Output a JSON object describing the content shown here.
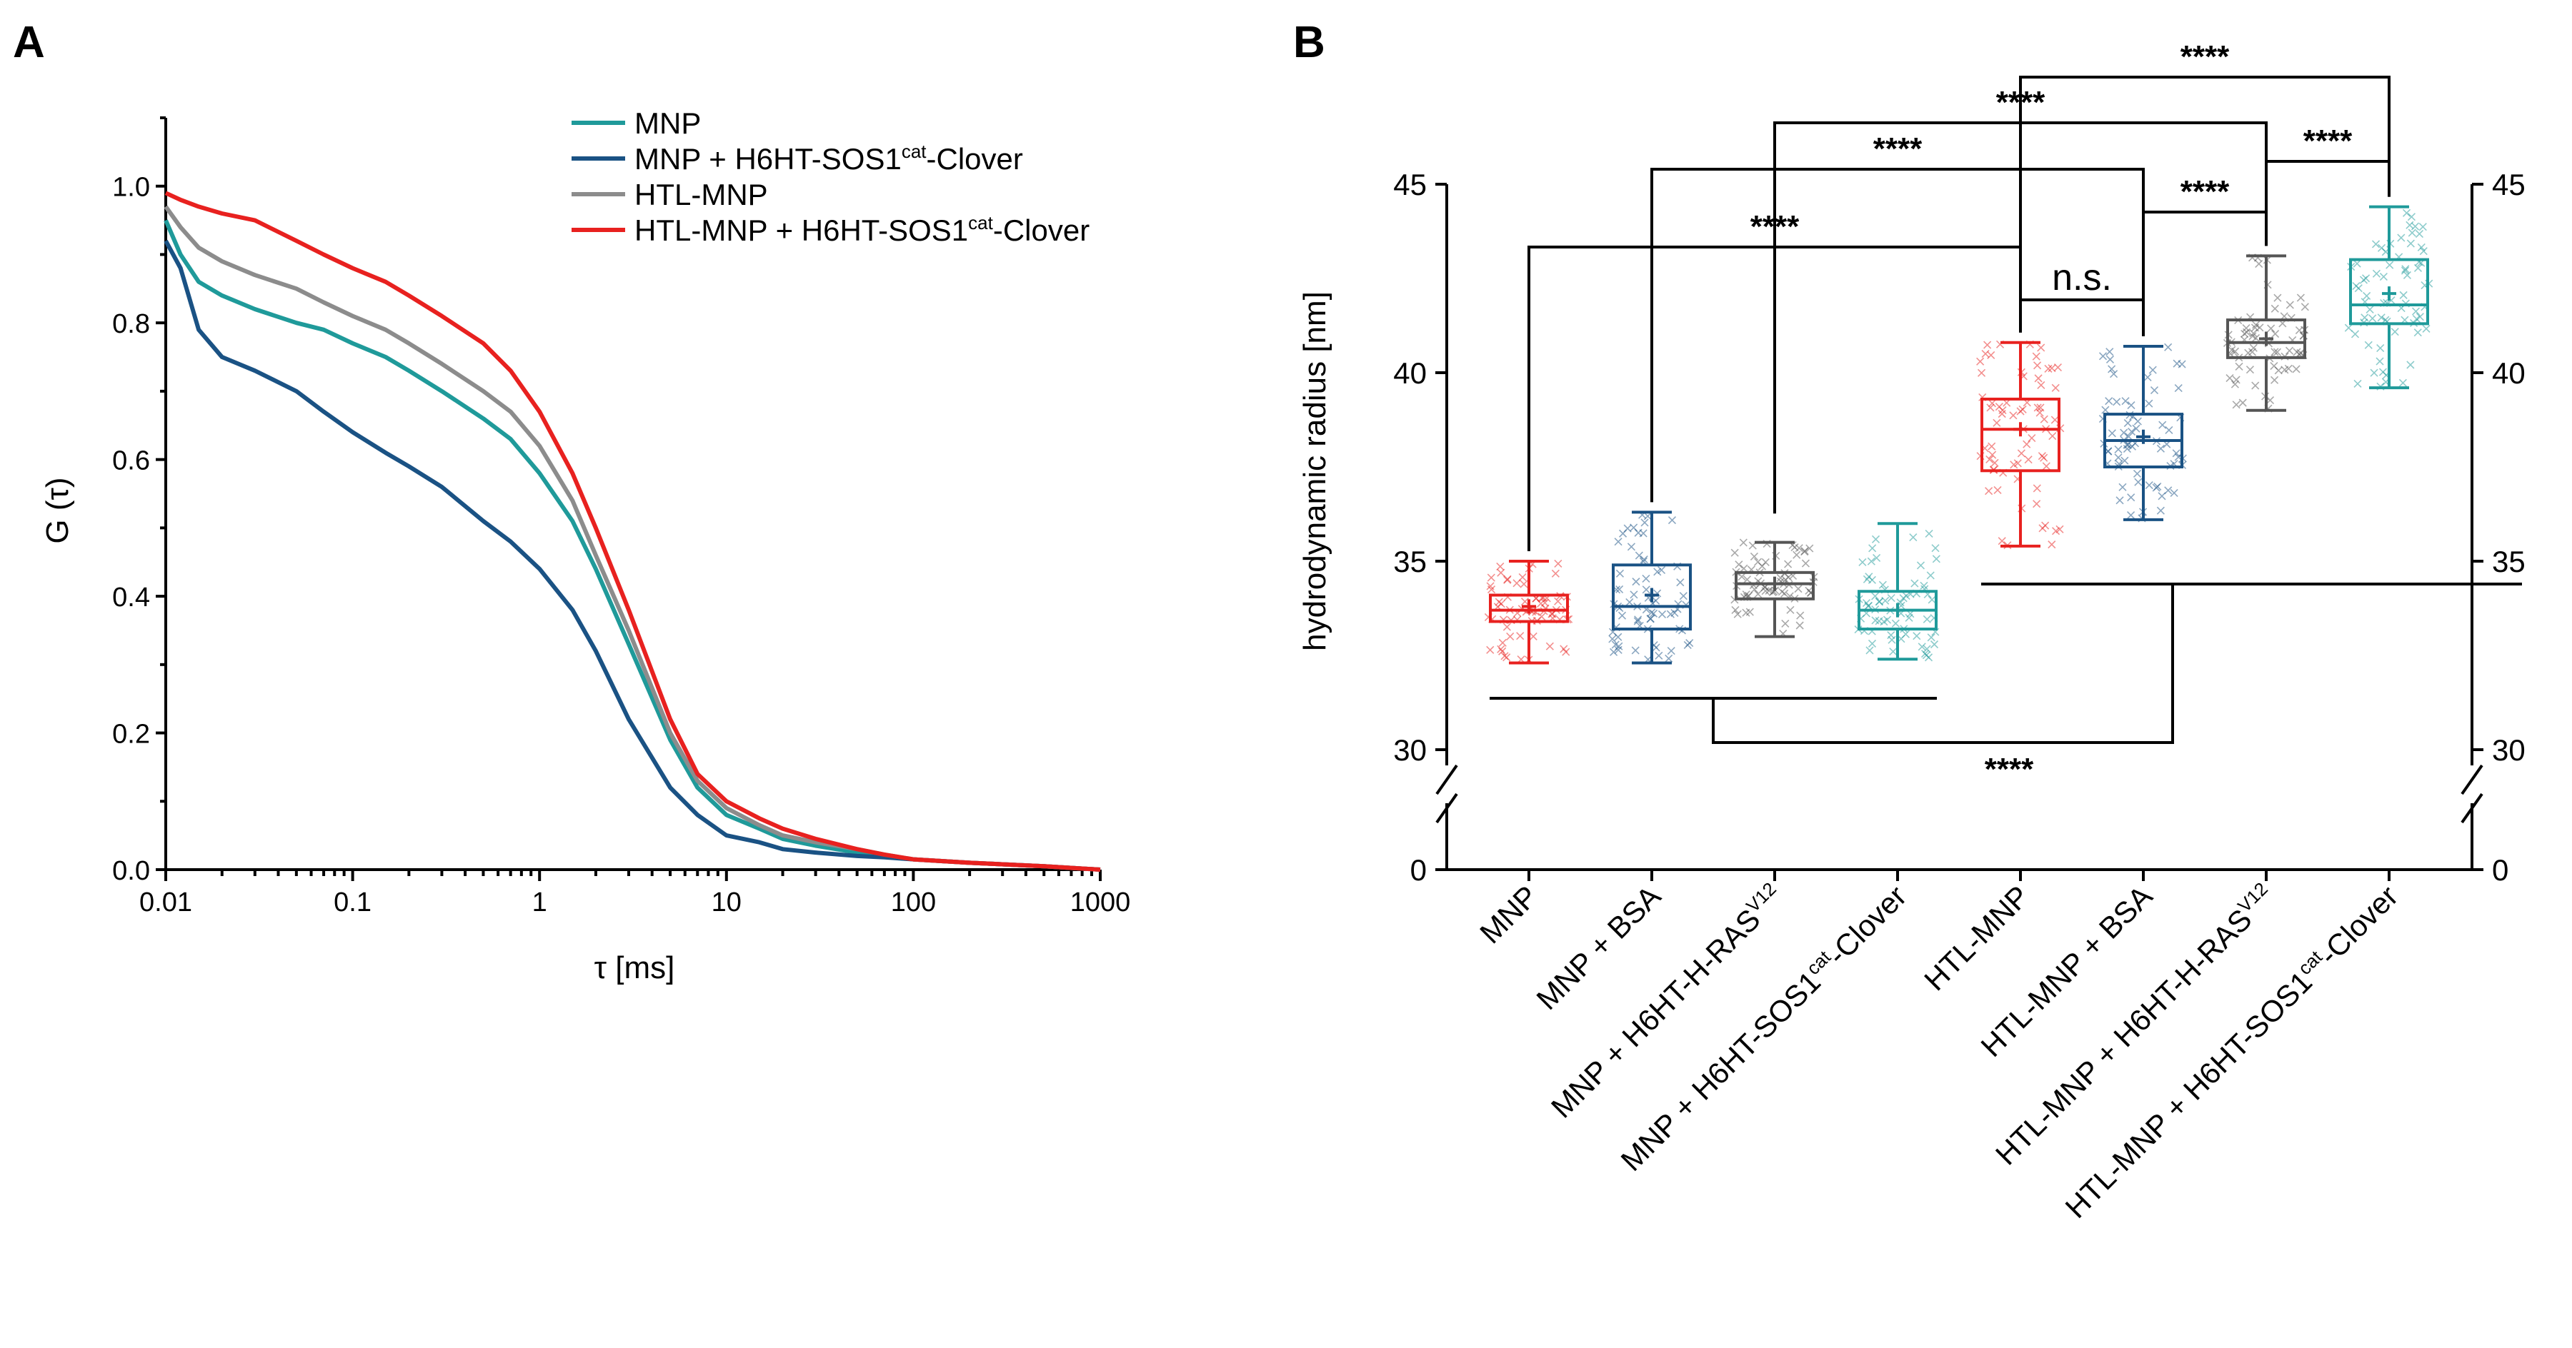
{
  "chart_data": [
    {
      "panel_label": "A",
      "type": "line",
      "x_scale": "log",
      "xlabel": "τ [ms]",
      "ylabel": "G (τ)",
      "xlim": [
        0.01,
        1000
      ],
      "ylim": [
        0,
        1.1
      ],
      "x_ticks": [
        0.01,
        0.1,
        1,
        10,
        100,
        1000
      ],
      "x_tick_labels": [
        "0.01",
        "0.1",
        "1",
        "10",
        "100",
        "1000"
      ],
      "y_ticks": [
        0,
        0.2,
        0.4,
        0.6,
        0.8,
        1.0
      ],
      "y_tick_labels": [
        "0.0",
        "0.2",
        "0.4",
        "0.6",
        "0.8",
        "1.0"
      ],
      "legend_position": "top-right",
      "series": [
        {
          "name": "MNP",
          "name_parts": [
            "MNP",
            "",
            ""
          ],
          "color": "#1f9a9a",
          "x": [
            0.01,
            0.012,
            0.015,
            0.02,
            0.03,
            0.05,
            0.07,
            0.1,
            0.15,
            0.2,
            0.3,
            0.5,
            0.7,
            1,
            1.5,
            2,
            3,
            5,
            7,
            10,
            15,
            20,
            30,
            50,
            70,
            100,
            200,
            500,
            1000
          ],
          "y": [
            0.95,
            0.9,
            0.86,
            0.84,
            0.82,
            0.8,
            0.79,
            0.77,
            0.75,
            0.73,
            0.7,
            0.66,
            0.63,
            0.58,
            0.51,
            0.44,
            0.33,
            0.19,
            0.12,
            0.08,
            0.06,
            0.045,
            0.035,
            0.025,
            0.02,
            0.015,
            0.01,
            0.005,
            0.0
          ]
        },
        {
          "name": "MNP + H6HT-SOS1cat-Clover",
          "name_parts": [
            "MNP + H6HT-SOS1",
            "cat",
            "-Clover"
          ],
          "color": "#1a5284",
          "x": [
            0.01,
            0.012,
            0.015,
            0.02,
            0.03,
            0.05,
            0.07,
            0.1,
            0.15,
            0.2,
            0.3,
            0.5,
            0.7,
            1,
            1.5,
            2,
            3,
            5,
            7,
            10,
            15,
            20,
            30,
            50,
            70,
            100,
            200,
            500,
            1000
          ],
          "y": [
            0.92,
            0.88,
            0.79,
            0.75,
            0.73,
            0.7,
            0.67,
            0.64,
            0.61,
            0.59,
            0.56,
            0.51,
            0.48,
            0.44,
            0.38,
            0.32,
            0.22,
            0.12,
            0.08,
            0.05,
            0.04,
            0.03,
            0.025,
            0.02,
            0.018,
            0.015,
            0.01,
            0.005,
            0.0
          ]
        },
        {
          "name": "HTL-MNP",
          "name_parts": [
            "HTL-MNP",
            "",
            ""
          ],
          "color": "#8c8c8c",
          "x": [
            0.01,
            0.012,
            0.015,
            0.02,
            0.03,
            0.05,
            0.07,
            0.1,
            0.15,
            0.2,
            0.3,
            0.5,
            0.7,
            1,
            1.5,
            2,
            3,
            5,
            7,
            10,
            15,
            20,
            30,
            50,
            70,
            100,
            200,
            500,
            1000
          ],
          "y": [
            0.97,
            0.94,
            0.91,
            0.89,
            0.87,
            0.85,
            0.83,
            0.81,
            0.79,
            0.77,
            0.74,
            0.7,
            0.67,
            0.62,
            0.54,
            0.46,
            0.35,
            0.2,
            0.13,
            0.09,
            0.065,
            0.05,
            0.04,
            0.03,
            0.022,
            0.015,
            0.01,
            0.005,
            0.0
          ]
        },
        {
          "name": "HTL-MNP + H6HT-SOS1cat-Clover",
          "name_parts": [
            "HTL-MNP + H6HT-SOS1",
            "cat",
            "-Clover"
          ],
          "color": "#e8211f",
          "x": [
            0.01,
            0.012,
            0.015,
            0.02,
            0.03,
            0.05,
            0.07,
            0.1,
            0.15,
            0.2,
            0.3,
            0.5,
            0.7,
            1,
            1.5,
            2,
            3,
            5,
            7,
            10,
            15,
            20,
            30,
            50,
            70,
            100,
            200,
            500,
            1000
          ],
          "y": [
            0.99,
            0.98,
            0.97,
            0.96,
            0.95,
            0.92,
            0.9,
            0.88,
            0.86,
            0.84,
            0.81,
            0.77,
            0.73,
            0.67,
            0.58,
            0.5,
            0.38,
            0.22,
            0.14,
            0.1,
            0.075,
            0.06,
            0.045,
            0.03,
            0.022,
            0.015,
            0.01,
            0.005,
            0.0
          ]
        }
      ]
    },
    {
      "panel_label": "B",
      "type": "box",
      "ylabel": "hydrodynamic radius [nm]",
      "y_axis_break": {
        "lower": 0,
        "upper_start": 30
      },
      "ylim": [
        30,
        45
      ],
      "y_ticks": [
        0,
        30,
        35,
        40,
        45
      ],
      "y_tick_labels": [
        "0",
        "30",
        "35",
        "40",
        "45"
      ],
      "categories": [
        {
          "label": "MNP",
          "base": "MNP",
          "sup": "",
          "tail": ""
        },
        {
          "label": "MNP + BSA",
          "base": "MNP + BSA",
          "sup": "",
          "tail": ""
        },
        {
          "label": "MNP + H6HT-H-RASV12",
          "base": "MNP + H6HT-H-RAS",
          "sup": "V12",
          "tail": ""
        },
        {
          "label": "MNP + H6HT-SOS1cat-Clover",
          "base": "MNP + H6HT-SOS1",
          "sup": "cat",
          "tail": "-Clover"
        },
        {
          "label": "HTL-MNP",
          "base": "HTL-MNP",
          "sup": "",
          "tail": ""
        },
        {
          "label": "HTL-MNP + BSA",
          "base": "HTL-MNP + BSA",
          "sup": "",
          "tail": ""
        },
        {
          "label": "HTL-MNP + H6HT-H-RASV12",
          "base": "HTL-MNP + H6HT-H-RAS",
          "sup": "V12",
          "tail": ""
        },
        {
          "label": "HTL-MNP + H6HT-SOS1cat-Clover",
          "base": "HTL-MNP + H6HT-SOS1",
          "sup": "cat",
          "tail": "-Clover"
        }
      ],
      "boxes": [
        {
          "min": 32.3,
          "q1": 33.4,
          "median": 33.7,
          "mean": 33.8,
          "q3": 34.1,
          "max": 35.0,
          "color": "#e8211f"
        },
        {
          "min": 32.3,
          "q1": 33.2,
          "median": 33.8,
          "mean": 34.1,
          "q3": 34.9,
          "max": 36.3,
          "color": "#1a5284"
        },
        {
          "min": 33.0,
          "q1": 34.0,
          "median": 34.4,
          "mean": 34.4,
          "q3": 34.7,
          "max": 35.5,
          "color": "#555555"
        },
        {
          "min": 32.4,
          "q1": 33.2,
          "median": 33.7,
          "mean": 33.7,
          "q3": 34.2,
          "max": 36.0,
          "color": "#1f9a9a"
        },
        {
          "min": 35.4,
          "q1": 37.4,
          "median": 38.5,
          "mean": 38.5,
          "q3": 39.3,
          "max": 40.8,
          "color": "#e8211f"
        },
        {
          "min": 36.1,
          "q1": 37.5,
          "median": 38.2,
          "mean": 38.3,
          "q3": 38.9,
          "max": 40.7,
          "color": "#1a5284"
        },
        {
          "min": 39.0,
          "q1": 40.4,
          "median": 40.8,
          "mean": 40.9,
          "q3": 41.4,
          "max": 43.1,
          "color": "#555555"
        },
        {
          "min": 39.6,
          "q1": 41.3,
          "median": 41.8,
          "mean": 42.1,
          "q3": 43.0,
          "max": 44.4,
          "color": "#1f9a9a"
        }
      ],
      "significance": [
        {
          "from": 4,
          "to": 7,
          "label": "****"
        },
        {
          "from": 2,
          "to": 6,
          "label": "****"
        },
        {
          "from": 1,
          "to": 5,
          "label": "****"
        },
        {
          "from": 0,
          "to": 4,
          "label": "****"
        },
        {
          "from": 4,
          "to": 5,
          "label": "n.s."
        },
        {
          "from": 5,
          "to": 6,
          "label": "****"
        },
        {
          "from": 6,
          "to": 7,
          "label": "****"
        },
        {
          "from": 0,
          "to": 3,
          "label": "****",
          "group": true
        }
      ]
    }
  ]
}
